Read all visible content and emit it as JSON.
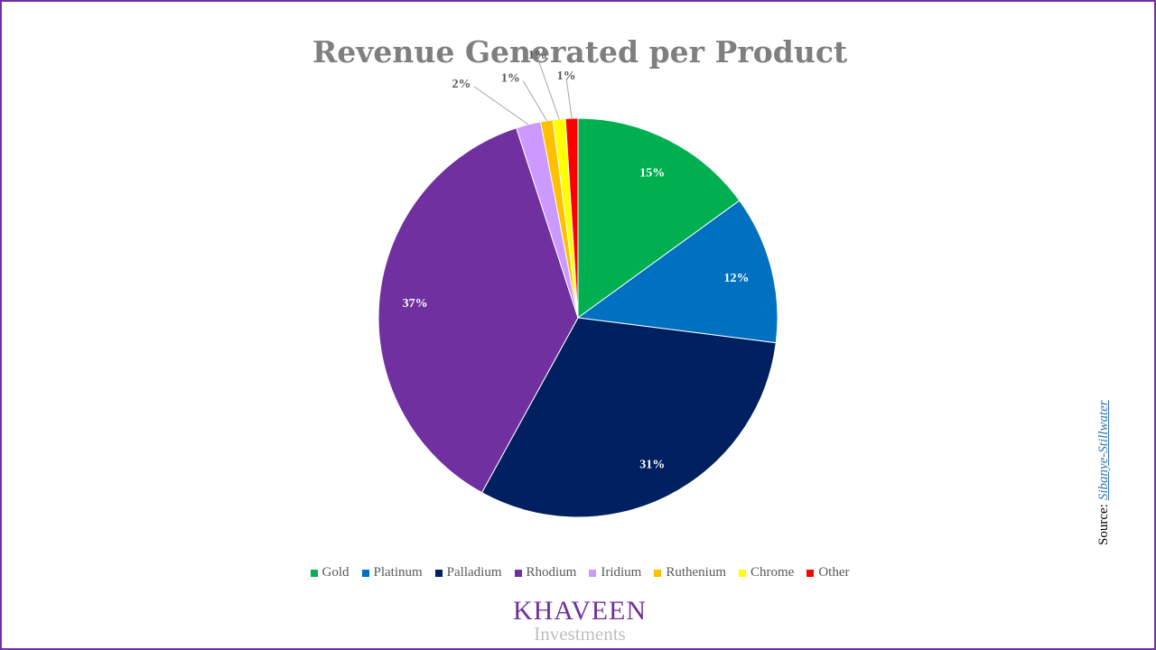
{
  "chart_data": {
    "type": "pie",
    "title": "Revenue Generated per Product",
    "categories": [
      "Gold",
      "Platinum",
      "Palladium",
      "Rhodium",
      "Iridium",
      "Ruthenium",
      "Chrome",
      "Other"
    ],
    "values": [
      15,
      12,
      31,
      37,
      2,
      1,
      1,
      1
    ],
    "labels": [
      "15%",
      "12%",
      "31%",
      "37%",
      "2%",
      "1%",
      "1%",
      "1%"
    ],
    "colors": [
      "#00b050",
      "#0070c0",
      "#002060",
      "#7030a0",
      "#cc99ff",
      "#ffc000",
      "#ffff00",
      "#ff0000"
    ],
    "label_colors": [
      "#ffffff",
      "#ffffff",
      "#ffffff",
      "#ffffff",
      "#595959",
      "#595959",
      "#595959",
      "#595959"
    ],
    "start_angle_deg": 0,
    "direction": "clockwise",
    "legend_position": "bottom"
  },
  "source": {
    "prefix": "Source:",
    "link_text": "Sibanye-Stillwater"
  },
  "logo": {
    "name": "KHAVEEN",
    "sub": "Investments"
  }
}
